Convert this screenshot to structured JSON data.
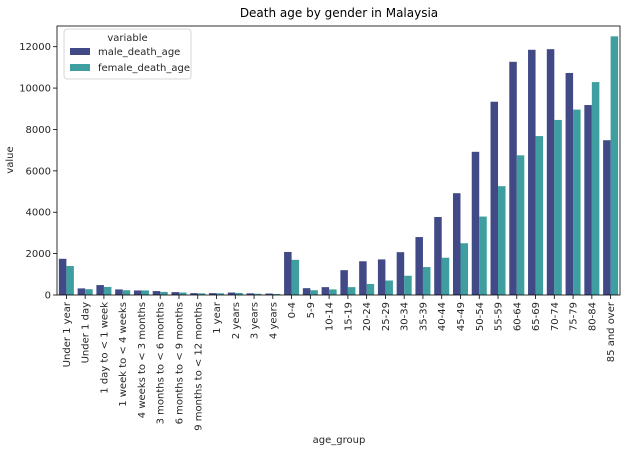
{
  "chart_data": {
    "type": "bar",
    "title": "Death age by gender in Malaysia",
    "xlabel": "age_group",
    "ylabel": "value",
    "ylim": [
      0,
      13000
    ],
    "yticks": [
      0,
      2000,
      4000,
      6000,
      8000,
      10000,
      12000
    ],
    "categories": [
      "Under 1 year",
      "Under 1 day",
      "1 day to < 1 week",
      "1 week to < 4 weeks",
      "4 weeks to < 3 months",
      "3 months to < 6 months",
      "6 months to < 9 months",
      "9 months to < 12 months",
      "1 year",
      "2 years",
      "3 years",
      "4 years",
      "0-4",
      "5-9",
      "10-14",
      "15-19",
      "20-24",
      "25-29",
      "30-34",
      "35-39",
      "40-44",
      "45-49",
      "50-54",
      "55-59",
      "60-64",
      "65-69",
      "70-74",
      "75-79",
      "80-84",
      "85 and over"
    ],
    "series": [
      {
        "name": "male_death_age",
        "color": "#414a86",
        "values": [
          1750,
          320,
          480,
          270,
          220,
          190,
          140,
          90,
          90,
          120,
          80,
          70,
          2080,
          330,
          380,
          1200,
          1630,
          1720,
          2070,
          2800,
          3770,
          4920,
          6920,
          9340,
          11270,
          11850,
          11880,
          10730,
          9180,
          7480
        ]
      },
      {
        "name": "female_death_age",
        "color": "#3f9e9f",
        "values": [
          1400,
          280,
          390,
          230,
          220,
          150,
          120,
          80,
          80,
          100,
          60,
          50,
          1700,
          230,
          270,
          380,
          530,
          700,
          930,
          1350,
          1800,
          2500,
          3790,
          5260,
          6750,
          7680,
          8460,
          8960,
          10290,
          12500
        ]
      }
    ],
    "legend": {
      "title": "variable",
      "placement": "top-left"
    },
    "grid": false
  }
}
